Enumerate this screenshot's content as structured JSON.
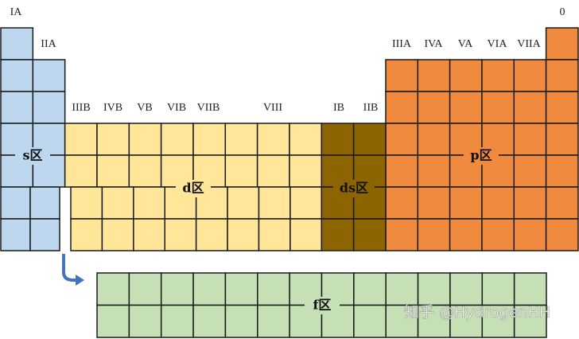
{
  "group_labels": [
    "IA",
    "0",
    "IIA",
    "IIIA",
    "IVA",
    "VA",
    "VIA",
    "VIIA",
    "IIIB",
    "IVB",
    "VB",
    "VIB",
    "VIIB",
    "VIII",
    "IB",
    "IIB"
  ],
  "blocks": [
    {
      "label": "s区"
    },
    {
      "label": "d区"
    },
    {
      "label": "ds区"
    },
    {
      "label": "p区"
    },
    {
      "label": "f区"
    }
  ],
  "watermark": "知乎 @HydrogenHH"
}
